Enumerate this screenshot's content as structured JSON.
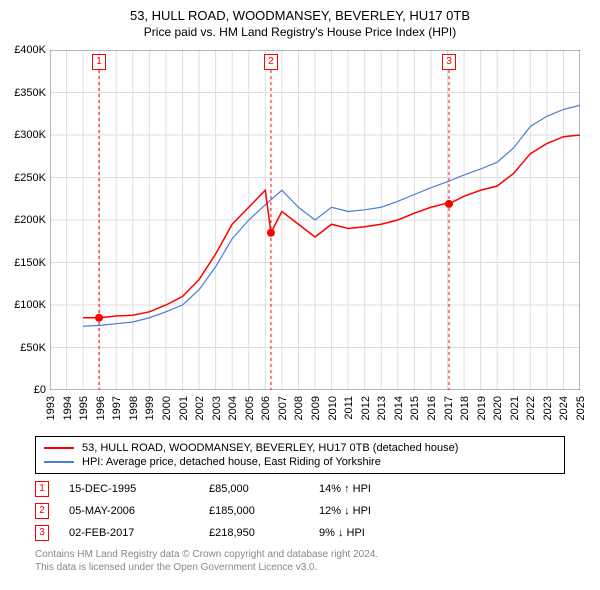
{
  "title": "53, HULL ROAD, WOODMANSEY, BEVERLEY, HU17 0TB",
  "subtitle": "Price paid vs. HM Land Registry's House Price Index (HPI)",
  "chart": {
    "type": "line",
    "background_color": "#ffffff",
    "grid_color": "#dddddd",
    "tick_color": "#000000",
    "label_fontsize": 11,
    "yaxis": {
      "min": 0,
      "max": 400000,
      "step": 50000,
      "labels": [
        "£0",
        "£50K",
        "£100K",
        "£150K",
        "£200K",
        "£250K",
        "£300K",
        "£350K",
        "£400K"
      ]
    },
    "xaxis": {
      "min": 1993,
      "max": 2025,
      "step": 1,
      "labels": [
        "1993",
        "1994",
        "1995",
        "1996",
        "1997",
        "1998",
        "1999",
        "2000",
        "2001",
        "2002",
        "2003",
        "2004",
        "2005",
        "2006",
        "2007",
        "2008",
        "2009",
        "2010",
        "2011",
        "2012",
        "2013",
        "2014",
        "2015",
        "2016",
        "2017",
        "2018",
        "2019",
        "2020",
        "2021",
        "2022",
        "2023",
        "2024",
        "2025"
      ]
    },
    "series": [
      {
        "name": "53, HULL ROAD, WOODMANSEY, BEVERLEY, HU17 0TB (detached house)",
        "color": "#ff0000",
        "line_width": 1.5,
        "data": [
          [
            1995,
            85000
          ],
          [
            1995.96,
            85000
          ],
          [
            1996,
            85000
          ],
          [
            1997,
            87000
          ],
          [
            1998,
            88000
          ],
          [
            1999,
            92000
          ],
          [
            2000,
            100000
          ],
          [
            2001,
            110000
          ],
          [
            2002,
            130000
          ],
          [
            2003,
            160000
          ],
          [
            2004,
            195000
          ],
          [
            2005,
            215000
          ],
          [
            2006,
            235000
          ],
          [
            2006.34,
            185000
          ],
          [
            2007,
            210000
          ],
          [
            2008,
            195000
          ],
          [
            2009,
            180000
          ],
          [
            2010,
            195000
          ],
          [
            2011,
            190000
          ],
          [
            2012,
            192000
          ],
          [
            2013,
            195000
          ],
          [
            2014,
            200000
          ],
          [
            2015,
            208000
          ],
          [
            2016,
            215000
          ],
          [
            2017,
            220000
          ],
          [
            2017.09,
            218950
          ],
          [
            2018,
            228000
          ],
          [
            2019,
            235000
          ],
          [
            2020,
            240000
          ],
          [
            2021,
            255000
          ],
          [
            2022,
            278000
          ],
          [
            2023,
            290000
          ],
          [
            2024,
            298000
          ],
          [
            2025,
            300000
          ]
        ]
      },
      {
        "name": "HPI: Average price, detached house, East Riding of Yorkshire",
        "color": "#4a7fd6",
        "line_width": 1.2,
        "data": [
          [
            1995,
            75000
          ],
          [
            1996,
            76000
          ],
          [
            1997,
            78000
          ],
          [
            1998,
            80000
          ],
          [
            1999,
            85000
          ],
          [
            2000,
            92000
          ],
          [
            2001,
            100000
          ],
          [
            2002,
            118000
          ],
          [
            2003,
            145000
          ],
          [
            2004,
            178000
          ],
          [
            2005,
            200000
          ],
          [
            2006,
            218000
          ],
          [
            2007,
            235000
          ],
          [
            2008,
            215000
          ],
          [
            2009,
            200000
          ],
          [
            2010,
            215000
          ],
          [
            2011,
            210000
          ],
          [
            2012,
            212000
          ],
          [
            2013,
            215000
          ],
          [
            2014,
            222000
          ],
          [
            2015,
            230000
          ],
          [
            2016,
            238000
          ],
          [
            2017,
            245000
          ],
          [
            2018,
            253000
          ],
          [
            2019,
            260000
          ],
          [
            2020,
            268000
          ],
          [
            2021,
            285000
          ],
          [
            2022,
            310000
          ],
          [
            2023,
            322000
          ],
          [
            2024,
            330000
          ],
          [
            2025,
            335000
          ]
        ]
      }
    ],
    "sale_markers": [
      {
        "num": "1",
        "year": 1995.96,
        "price": 85000,
        "dashed_color": "#ff0000"
      },
      {
        "num": "2",
        "year": 2006.34,
        "price": 185000,
        "dashed_color": "#ff0000"
      },
      {
        "num": "3",
        "year": 2017.09,
        "price": 218950,
        "dashed_color": "#ff0000"
      }
    ]
  },
  "legend": {
    "items": [
      {
        "color": "#ff0000",
        "label": "53, HULL ROAD, WOODMANSEY, BEVERLEY, HU17 0TB (detached house)"
      },
      {
        "color": "#4a7fd6",
        "label": "HPI: Average price, detached house, East Riding of Yorkshire"
      }
    ]
  },
  "events": [
    {
      "num": "1",
      "date": "15-DEC-1995",
      "price": "£85,000",
      "delta": "14% ↑ HPI"
    },
    {
      "num": "2",
      "date": "05-MAY-2006",
      "price": "£185,000",
      "delta": "12% ↓ HPI"
    },
    {
      "num": "3",
      "date": "02-FEB-2017",
      "price": "£218,950",
      "delta": "9% ↓ HPI"
    }
  ],
  "footer": {
    "line1": "Contains HM Land Registry data © Crown copyright and database right 2024.",
    "line2": "This data is licensed under the Open Government Licence v3.0."
  }
}
